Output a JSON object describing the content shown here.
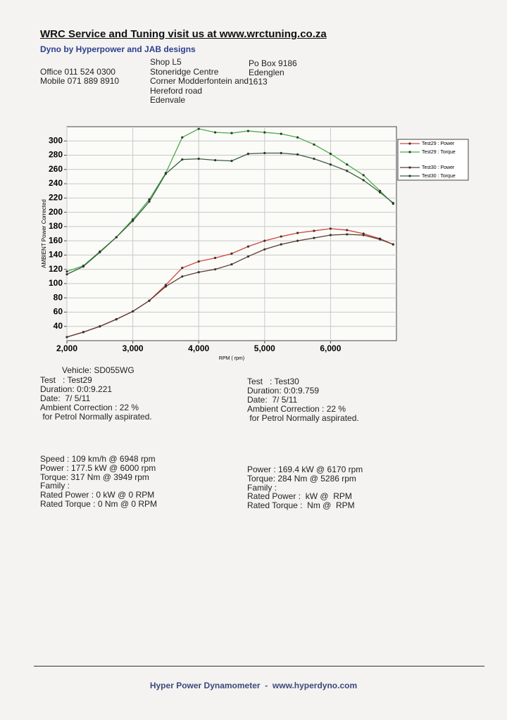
{
  "header": {
    "title": "WRC Service and Tuning visit us at www.wrctuning.co.za",
    "subtitle": "Dyno by Hyperpower and JAB designs",
    "phone": [
      "Office 011 524 0300",
      "Mobile 071 889 8910"
    ],
    "address": [
      "Shop L5",
      "Stoneridge Centre",
      "Corner Modderfontein and",
      "Hereford road",
      "Edenvale"
    ],
    "postal": [
      "Po Box 9186",
      "Edenglen",
      "1613"
    ]
  },
  "chart_data": {
    "type": "line",
    "ylabel": "AMBIENT Power Corrected",
    "xlabel": "RPM ( rpm)",
    "x": [
      2000,
      2250,
      2500,
      2750,
      3000,
      3250,
      3500,
      3750,
      4000,
      4250,
      4500,
      4750,
      5000,
      5250,
      5500,
      5750,
      6000,
      6250,
      6500,
      6750,
      6950
    ],
    "series": [
      {
        "name": "Test29 : Power",
        "color": "#d5433a",
        "values": [
          25,
          32,
          40,
          50,
          61,
          76,
          98,
          122,
          131,
          136,
          142,
          152,
          160,
          166,
          171,
          174,
          177,
          175,
          170,
          163,
          155
        ]
      },
      {
        "name": "Test29 : Torque",
        "color": "#45ad45",
        "values": [
          117,
          125,
          145,
          165,
          190,
          218,
          255,
          305,
          317,
          312,
          311,
          314,
          312,
          310,
          305,
          295,
          282,
          267,
          252,
          230,
          212
        ]
      },
      {
        "name": "Test30 : Power",
        "color": "#5a3a2e",
        "values": [
          25,
          32,
          40,
          50,
          61,
          76,
          96,
          110,
          116,
          120,
          127,
          138,
          148,
          155,
          160,
          164,
          168,
          169,
          168,
          162,
          155
        ]
      },
      {
        "name": "Test30 : Torque",
        "color": "#35603a",
        "values": [
          113,
          124,
          144,
          165,
          188,
          215,
          254,
          274,
          275,
          273,
          272,
          282,
          283,
          283,
          281,
          275,
          267,
          258,
          245,
          228,
          213
        ]
      }
    ],
    "xlim": [
      2000,
      7000
    ],
    "xticks": [
      {
        "value": 2000,
        "label": "2,000"
      },
      {
        "value": 3000,
        "label": "3,000"
      },
      {
        "value": 4000,
        "label": "4,000"
      },
      {
        "value": 5000,
        "label": "5,000"
      },
      {
        "value": 6000,
        "label": "6,000"
      }
    ],
    "ylim": [
      20,
      320
    ],
    "yticks": [
      40,
      60,
      80,
      100,
      120,
      140,
      160,
      180,
      200,
      220,
      240,
      260,
      280,
      300
    ],
    "grid": true
  },
  "vehicle": "Vehicle: SD055WG",
  "tests": [
    {
      "lines": [
        "Test   : Test29",
        "Duration: 0:0:9.221",
        "Date:  7/ 5/11",
        "Ambient Correction : 22 %",
        " for Petrol Normally aspirated."
      ],
      "summary": [
        "Speed : 109 km/h @ 6948 rpm",
        "Power : 177.5 kW @ 6000 rpm",
        "Torque: 317 Nm @ 3949 rpm",
        "Family :",
        "Rated Power : 0 kW @ 0 RPM",
        "Rated Torque : 0 Nm @ 0 RPM"
      ]
    },
    {
      "lines": [
        "Test   : Test30",
        "Duration: 0:0:9.759",
        "Date:  7/ 5/11",
        "Ambient Correction : 22 %",
        " for Petrol Normally aspirated."
      ],
      "summary": [
        "Power : 169.4 kW @ 6170 rpm",
        "Torque: 284 Nm @ 5286 rpm",
        "Family :",
        "Rated Power :  kW @  RPM",
        "Rated Torque :  Nm @  RPM"
      ]
    }
  ],
  "footer": "Hyper Power Dynamometer  -  www.hyperdyno.com"
}
